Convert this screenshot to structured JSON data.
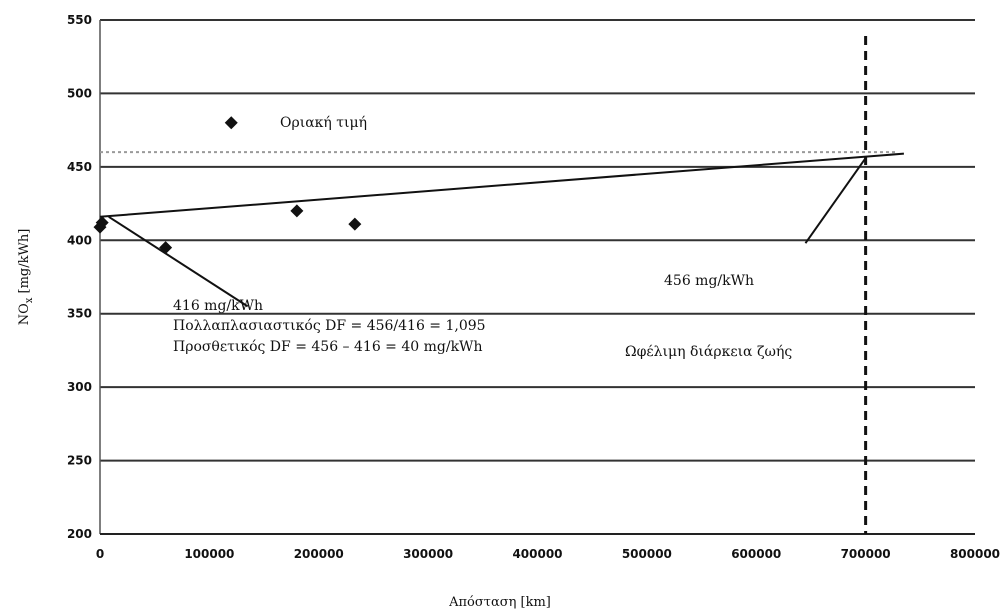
{
  "chart_data": {
    "type": "scatter",
    "xlabel": "Απόσταση [km]",
    "ylabel_main": "NO",
    "ylabel_sub": "x",
    "ylabel_rest": " [mg/kWh]",
    "xlim": [
      0,
      800000
    ],
    "ylim": [
      200,
      550
    ],
    "x_ticks": [
      0,
      100000,
      200000,
      300000,
      400000,
      500000,
      600000,
      700000,
      800000
    ],
    "y_ticks": [
      200,
      250,
      300,
      350,
      400,
      450,
      500,
      550
    ],
    "grid": "horizontal",
    "points": [
      {
        "x": 0,
        "y": 409
      },
      {
        "x": 2000,
        "y": 412
      },
      {
        "x": 60000,
        "y": 395
      },
      {
        "x": 180000,
        "y": 420
      },
      {
        "x": 233000,
        "y": 411
      }
    ],
    "legend_marker_point": {
      "x": 120000,
      "y": 480
    },
    "legend_label": "Οριακή τιμή",
    "limit_value": 460,
    "trend_line": {
      "x": [
        0,
        735000
      ],
      "y": [
        416,
        459
      ]
    },
    "useful_life_km": 700000,
    "annotations": {
      "start_value": "416 mg/kWh",
      "multiplicative": "Πολλαπλασιαστικός DF = 456/416 = 1,095",
      "additive": "Προσθετικός DF = 456 – 416 = 40 mg/kWh",
      "end_value": "456 mg/kWh",
      "useful_life": "Ωφέλιμη διάρκεια ζωής"
    },
    "leaders": [
      {
        "from": [
          8000,
          416
        ],
        "to": [
          135000,
          355
        ]
      },
      {
        "from": [
          700000,
          456
        ],
        "to": [
          645000,
          398
        ]
      }
    ]
  }
}
